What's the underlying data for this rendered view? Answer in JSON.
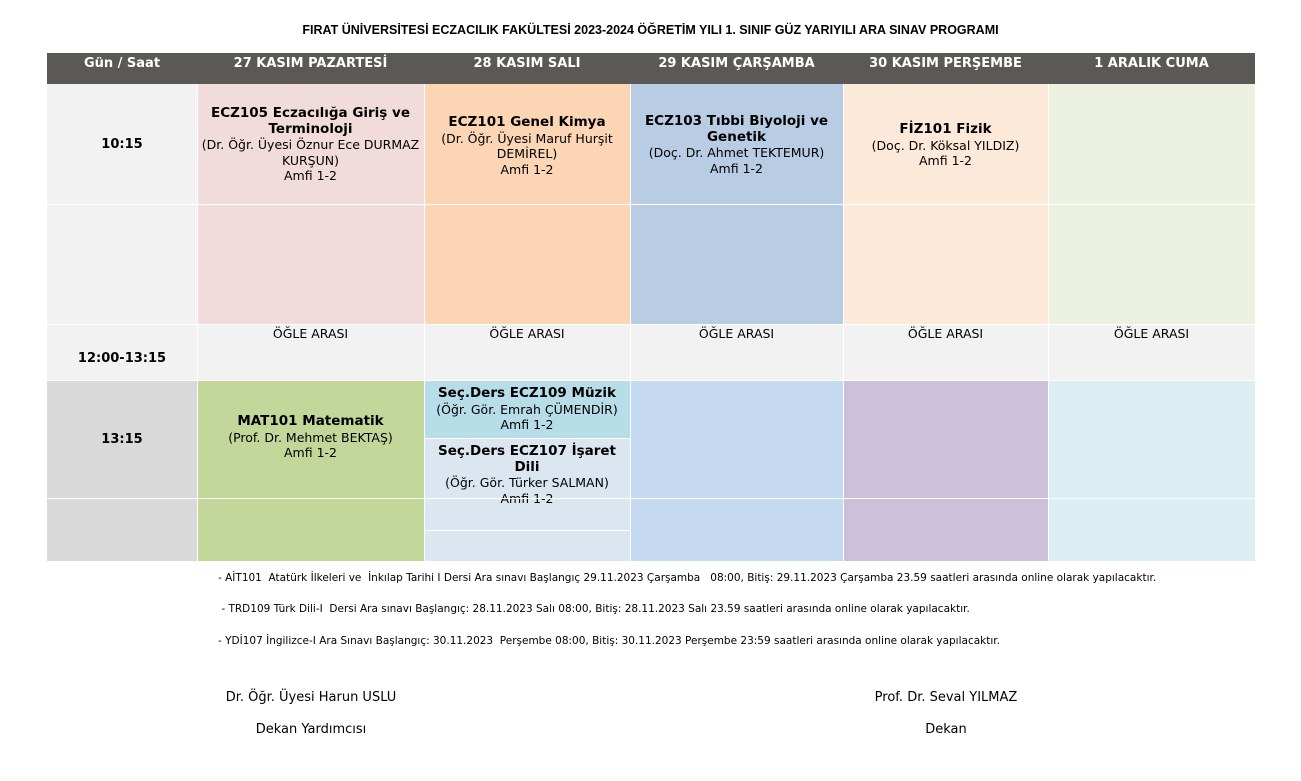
{
  "title": "FIRAT ÜNİVERSİTESİ ECZACILIK FAKÜLTESİ 2023-2024 ÖĞRETİM YILI 1. SINIF GÜZ YARIYILI ARA SINAV PROGRAMI",
  "header": {
    "time_col": "Gün / Saat",
    "days": [
      "27 KASIM PAZARTESİ",
      "28 KASIM SALI",
      "29 KASIM ÇARŞAMBA",
      "30 KASIM PERŞEMBE",
      "1 ARALIK CUMA"
    ]
  },
  "times": {
    "slot1": "10:15",
    "lunch": "12:00-13:15",
    "slot2": "13:15"
  },
  "exams": {
    "mon_am": {
      "code": "ECZ105 Eczacılığa Giriş ve Terminoloji",
      "teacher": "(Dr. Öğr. Üyesi Öznur Ece DURMAZ KURŞUN)",
      "room": "Amfi 1-2"
    },
    "tue_am": {
      "code": "ECZ101 Genel Kimya",
      "teacher": "(Dr. Öğr. Üyesi Maruf Hurşit DEMİREL)",
      "room": "Amfi 1-2"
    },
    "wed_am": {
      "code": "ECZ103 Tıbbi Biyoloji ve Genetik",
      "teacher": "(Doç. Dr. Ahmet TEKTEMUR)",
      "room": "Amfi 1-2"
    },
    "thu_am": {
      "code": "FİZ101 Fizik",
      "teacher": "(Doç. Dr. Köksal YILDIZ)",
      "room": "Amfi 1-2"
    },
    "mon_pm": {
      "code": "MAT101 Matematik",
      "teacher": "(Prof. Dr. Mehmet BEKTAŞ)",
      "room": "Amfi 1-2"
    },
    "tue_pm1": {
      "code": "Seç.Ders ECZ109 Müzik",
      "teacher": "(Öğr. Gör. Emrah ÇÜMENDİR)",
      "room": "Amfi 1-2"
    },
    "tue_pm2": {
      "code": "Seç.Ders ECZ107 İşaret Dili",
      "teacher": "(Öğr. Gör. Türker SALMAN)",
      "room": "Amfi 1-2"
    }
  },
  "lunch_label": "ÖĞLE ARASI",
  "notes": [
    "- AİT101  Atatürk İlkeleri ve  İnkılap Tarihi I Dersi Ara sınavı Başlangıç 29.11.2023 Çarşamba   08:00, Bitiş: 29.11.2023 Çarşamba 23.59 saatleri arasında online olarak yapılacaktır.",
    " - TRD109 Türk Dili-I  Dersi Ara sınavı Başlangıç: 28.11.2023 Salı 08:00, Bitiş: 28.11.2023 Salı 23.59 saatleri arasında online olarak yapılacaktır.",
    "- YDİ107 İngilizce-I Ara Sınavı Başlangıç: 30.11.2023  Perşembe 08:00, Bitiş: 30.11.2023 Perşembe 23:59 saatleri arasında online olarak yapılacaktır."
  ],
  "signatures": {
    "left": {
      "name": "Dr. Öğr. Üyesi Harun USLU",
      "role": "Dekan Yardımcısı"
    },
    "right": {
      "name": "Prof. Dr. Seval YILMAZ",
      "role": "Dekan"
    }
  },
  "colors": {
    "header_bg": "#5a5955",
    "mon_am": "#f2dcdb",
    "tue_am": "#fcd5b4",
    "wed_am": "#b8cce4",
    "thu_am": "#fde9d9",
    "fri_am": "#ebf1de",
    "mon_pm": "#c4d79b",
    "tue_pm1": "#b7dee8",
    "tue_pm2": "#dce6f1",
    "wed_pm": "#c5d9f1",
    "thu_pm": "#ccc0da",
    "fri_pm": "#daeef3"
  }
}
